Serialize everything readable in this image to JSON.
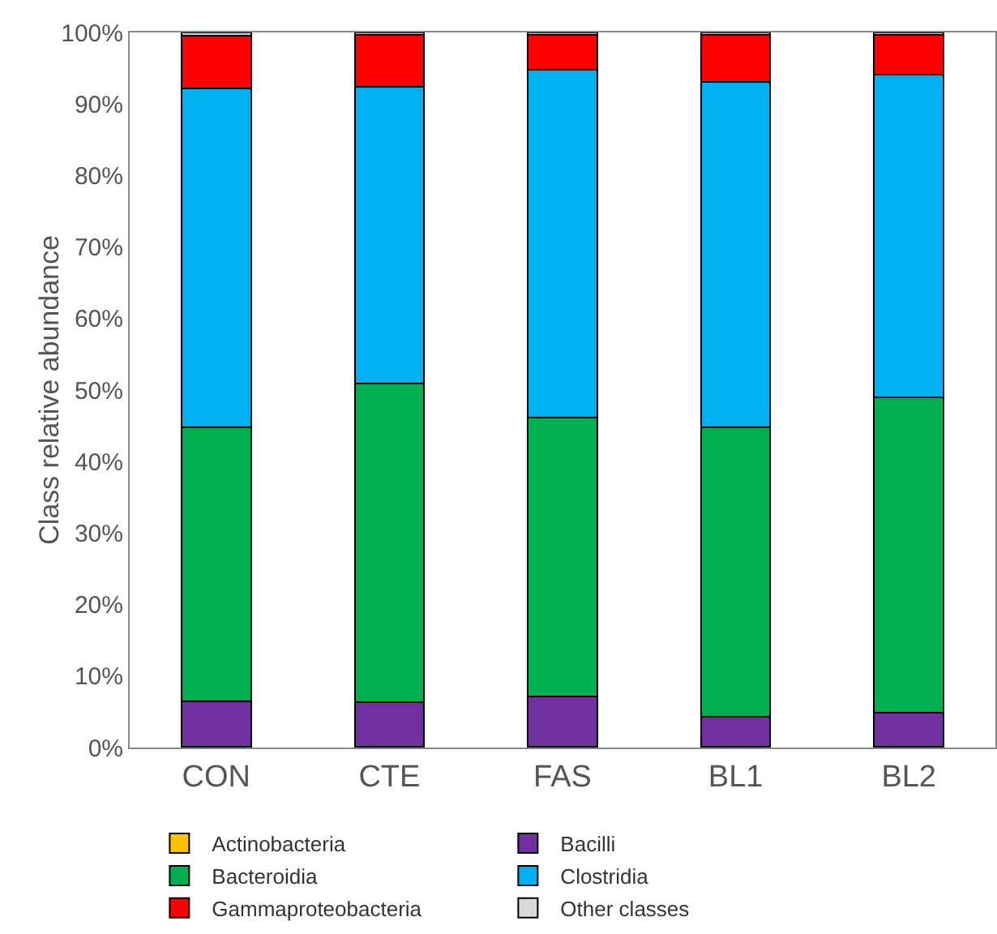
{
  "chart_data": {
    "type": "bar",
    "stacked": true,
    "ylabel": "Class relative abundance",
    "categories": [
      "CON",
      "CTE",
      "FAS",
      "BL1",
      "BL2"
    ],
    "series": [
      {
        "name": "Actinobacteria",
        "color": "#ffc000",
        "values": [
          0.1,
          0.1,
          0.1,
          0.1,
          0.1
        ]
      },
      {
        "name": "Bacilli",
        "color": "#7030a0",
        "values": [
          6.4,
          6.3,
          7.0,
          4.2,
          4.8
        ]
      },
      {
        "name": "Bacteroidia",
        "color": "#00b050",
        "values": [
          38.3,
          44.5,
          39.0,
          40.5,
          44.1
        ]
      },
      {
        "name": "Clostridia",
        "color": "#00b0f0",
        "values": [
          47.4,
          41.5,
          48.7,
          48.3,
          45.1
        ]
      },
      {
        "name": "Gammaproteobacteria",
        "color": "#ff0000",
        "values": [
          7.4,
          7.3,
          4.9,
          6.6,
          5.6
        ]
      },
      {
        "name": "Other classes",
        "color": "#d9d9d9",
        "values": [
          0.4,
          0.3,
          0.3,
          0.3,
          0.3
        ]
      }
    ],
    "ylim": [
      0,
      100
    ],
    "yticks": [
      {
        "value": 0,
        "label": "0%"
      },
      {
        "value": 10,
        "label": "10%"
      },
      {
        "value": 20,
        "label": "20%"
      },
      {
        "value": 30,
        "label": "30%"
      },
      {
        "value": 40,
        "label": "40%"
      },
      {
        "value": 50,
        "label": "50%"
      },
      {
        "value": 60,
        "label": "60%"
      },
      {
        "value": 70,
        "label": "70%"
      },
      {
        "value": 80,
        "label": "80%"
      },
      {
        "value": 90,
        "label": "90%"
      },
      {
        "value": 100,
        "label": "100%"
      }
    ],
    "grid": false,
    "legend": "bottom"
  }
}
